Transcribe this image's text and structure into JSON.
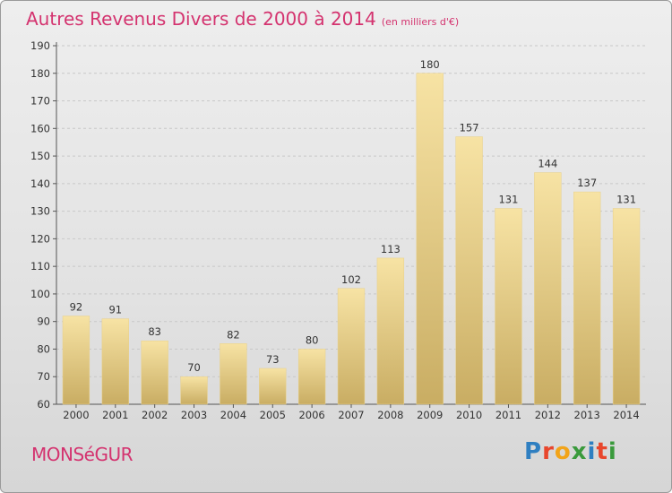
{
  "header": {
    "title": "Autres Revenus Divers de 2000 à 2014",
    "subtitle": "(en milliers d'€)"
  },
  "footer": {
    "commune": "MONSéGUR",
    "brand": "Proxiti",
    "brand_letters": [
      {
        "ch": "P",
        "color": "#2f7fc1"
      },
      {
        "ch": "r",
        "color": "#e8462c"
      },
      {
        "ch": "o",
        "color": "#f2a419"
      },
      {
        "ch": "x",
        "color": "#3a9a3c"
      },
      {
        "ch": "i",
        "color": "#2f7fc1"
      },
      {
        "ch": "t",
        "color": "#e8462c"
      },
      {
        "ch": "i",
        "color": "#3a9a3c"
      }
    ]
  },
  "colors": {
    "title": "#d4336f",
    "bar_light": "#f7e3a4",
    "bar_dark": "#c9ad63"
  },
  "chart_data": {
    "type": "bar",
    "title": "Autres Revenus Divers de 2000 à 2014",
    "subtitle": "(en milliers d'€)",
    "categories": [
      "2000",
      "2001",
      "2002",
      "2003",
      "2004",
      "2005",
      "2006",
      "2007",
      "2008",
      "2009",
      "2010",
      "2011",
      "2012",
      "2013",
      "2014"
    ],
    "values": [
      92,
      91,
      83,
      70,
      82,
      73,
      80,
      102,
      113,
      180,
      157,
      131,
      144,
      137,
      131
    ],
    "ylim": [
      60,
      190
    ],
    "yticks": [
      60,
      70,
      80,
      90,
      100,
      110,
      120,
      130,
      140,
      150,
      160,
      170,
      180,
      190
    ],
    "grid": "horizontal dashed",
    "show_value_labels": true
  }
}
